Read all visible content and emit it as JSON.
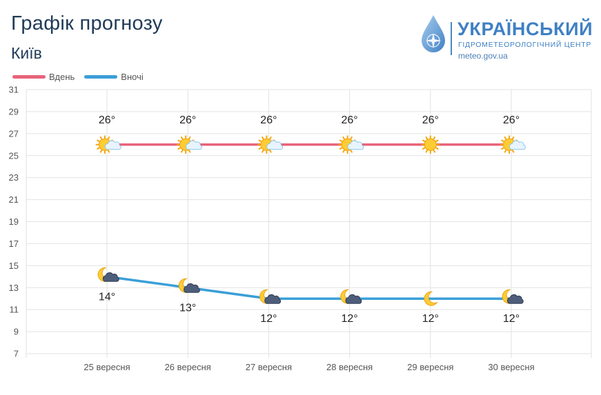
{
  "header": {
    "title": "Графік прогнозу",
    "city": "Київ"
  },
  "logo": {
    "name": "УКРАЇНСЬКИЙ",
    "org": "ГІДРОМЕТЕОРОЛОГІЧНИЙ ЦЕНТР",
    "url": "meteo.gov.ua"
  },
  "colors": {
    "day": "#e8637a",
    "night": "#3b9fd8",
    "grid": "#e2e2e2",
    "text": "#222222",
    "axis_text": "#555555"
  },
  "chart_data": {
    "type": "line",
    "title": "",
    "xlabel": "",
    "ylabel": "",
    "categories": [
      "25 вересня",
      "26 вересня",
      "27 вересня",
      "28 вересня",
      "29 вересня",
      "30 вересня"
    ],
    "ylim": [
      7,
      31
    ],
    "yticks": [
      7,
      9,
      11,
      13,
      15,
      17,
      19,
      21,
      23,
      25,
      27,
      29,
      31
    ],
    "grid": true,
    "legend_position": "top-left",
    "series": [
      {
        "name": "Вдень",
        "color": "#e8637a",
        "values": [
          26,
          26,
          26,
          26,
          26,
          26
        ],
        "labels": [
          "26°",
          "26°",
          "26°",
          "26°",
          "26°",
          "26°"
        ],
        "icons": [
          "sun-cloud-icon",
          "sun-cloud-icon",
          "sun-cloud-icon",
          "sun-cloud-icon",
          "sun-icon",
          "sun-cloud-icon"
        ]
      },
      {
        "name": "Вночі",
        "color": "#3b9fd8",
        "values": [
          14,
          13,
          12,
          12,
          12,
          12
        ],
        "labels": [
          "14°",
          "13°",
          "12°",
          "12°",
          "12°",
          "12°"
        ],
        "icons": [
          "moon-cloud-icon",
          "moon-cloud-icon",
          "moon-cloud-icon",
          "moon-cloud-icon",
          "moon-icon",
          "moon-cloud-icon"
        ]
      }
    ]
  }
}
